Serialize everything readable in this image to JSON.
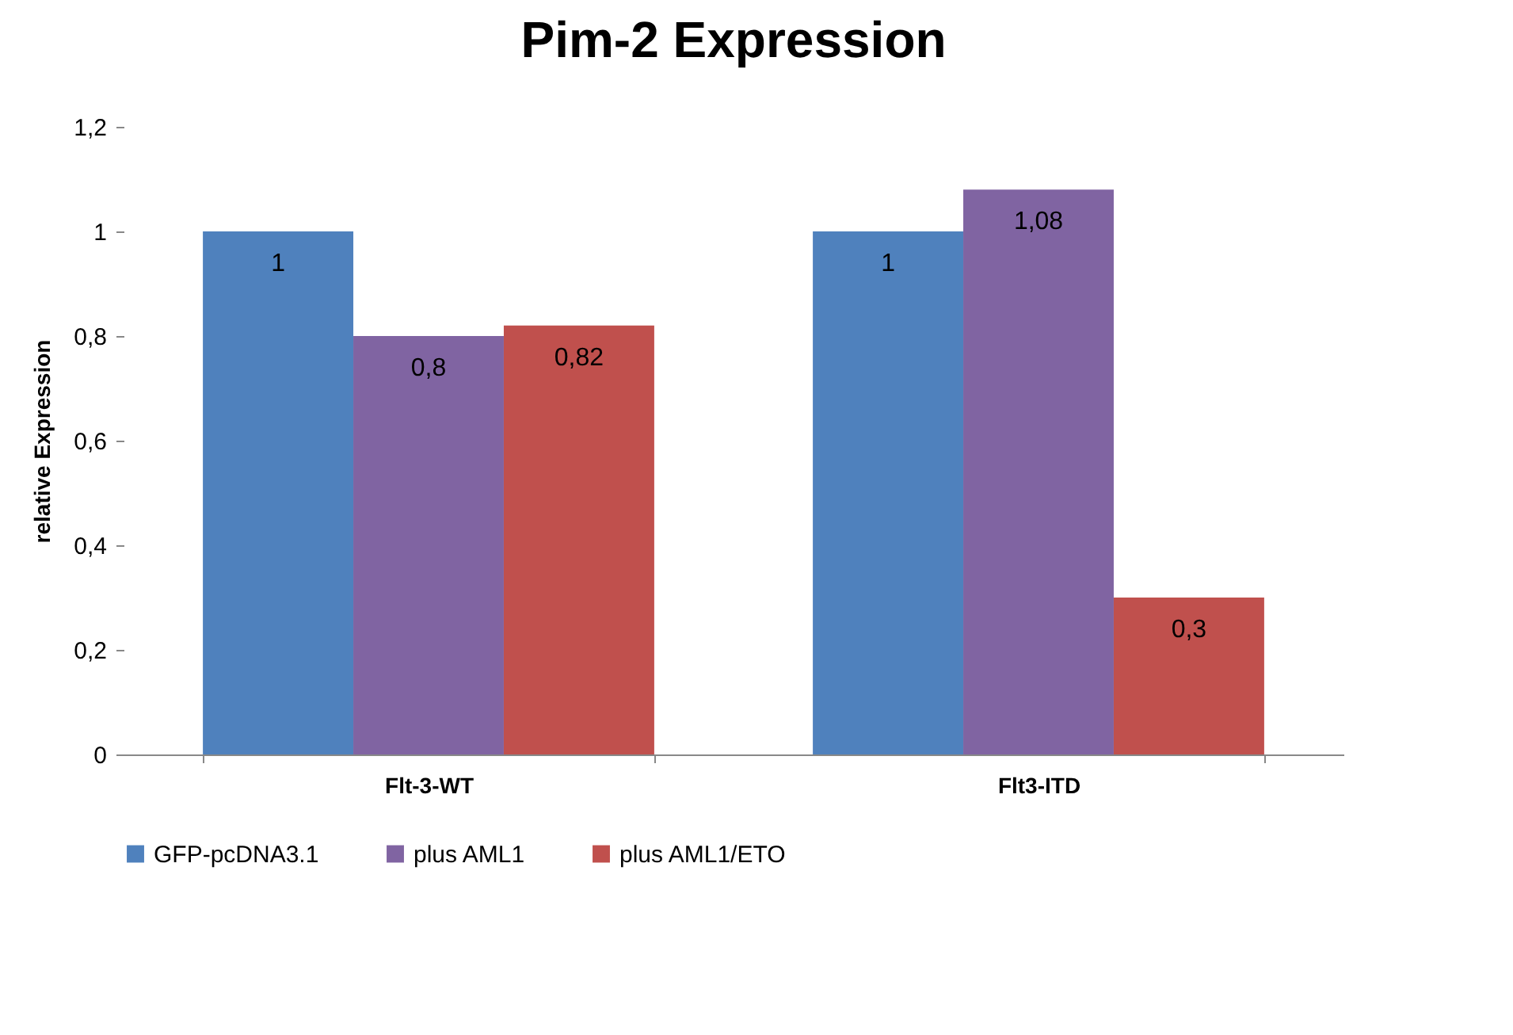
{
  "chart_data": {
    "type": "bar",
    "title": "Pim-2 Expression",
    "ylabel": "relative Expression",
    "categories": [
      "Flt-3-WT",
      "Flt3-ITD"
    ],
    "series": [
      {
        "name": "GFP-pcDNA3.1",
        "color": "#4f81bd",
        "values": [
          1,
          1
        ],
        "value_labels": [
          "1",
          "1"
        ]
      },
      {
        "name": "plus AML1",
        "color": "#8064a2",
        "values": [
          0.8,
          1.08
        ],
        "value_labels": [
          "0,8",
          "1,08"
        ]
      },
      {
        "name": "plus AML1/ETO",
        "color": "#c0504d",
        "values": [
          0.82,
          0.3
        ],
        "value_labels": [
          "0,82",
          "0,3"
        ]
      }
    ],
    "ylim": [
      0,
      1.2
    ],
    "yticks": [
      {
        "value": 0,
        "label": "0"
      },
      {
        "value": 0.2,
        "label": "0,2"
      },
      {
        "value": 0.4,
        "label": "0,4"
      },
      {
        "value": 0.6,
        "label": "0,6"
      },
      {
        "value": 0.8,
        "label": "0,8"
      },
      {
        "value": 1,
        "label": "1"
      },
      {
        "value": 1.2,
        "label": "1,2"
      }
    ],
    "grid": false,
    "legend": "bottom"
  }
}
